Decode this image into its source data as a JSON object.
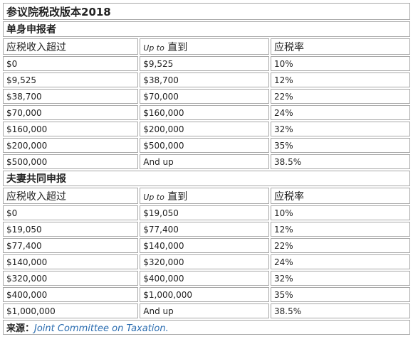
{
  "title": "参议院税改版本2018",
  "sections": [
    {
      "title": "单身申报者",
      "header": {
        "col1": "应税收入超过",
        "col2_italic": "Up to",
        "col2": "直到",
        "col3": "应税率"
      },
      "rows": [
        [
          "$0",
          "$9,525",
          "10%"
        ],
        [
          "$9,525",
          "$38,700",
          "12%"
        ],
        [
          "$38,700",
          "$70,000",
          "22%"
        ],
        [
          "$70,000",
          "$160,000",
          "24%"
        ],
        [
          "$160,000",
          "$200,000",
          "32%"
        ],
        [
          "$200,000",
          "$500,000",
          "35%"
        ],
        [
          "$500,000",
          "And up",
          "38.5%"
        ]
      ]
    },
    {
      "title": "夫妻共同申报",
      "header": {
        "col1": "应税收入超过",
        "col2_italic": "Up to",
        "col2": "直到",
        "col3": "应税率"
      },
      "rows": [
        [
          "$0",
          "$19,050",
          "10%"
        ],
        [
          "$19,050",
          "$77,400",
          "12%"
        ],
        [
          "$77,400",
          "$140,000",
          "22%"
        ],
        [
          "$140,000",
          "$320,000",
          "24%"
        ],
        [
          "$320,000",
          "$400,000",
          "32%"
        ],
        [
          "$400,000",
          "$1,000,000",
          "35%"
        ],
        [
          "$1,000,000",
          "And up",
          "38.5%"
        ]
      ]
    }
  ],
  "source": {
    "label": "来源：",
    "text": "Joint Committee on Taxation."
  }
}
